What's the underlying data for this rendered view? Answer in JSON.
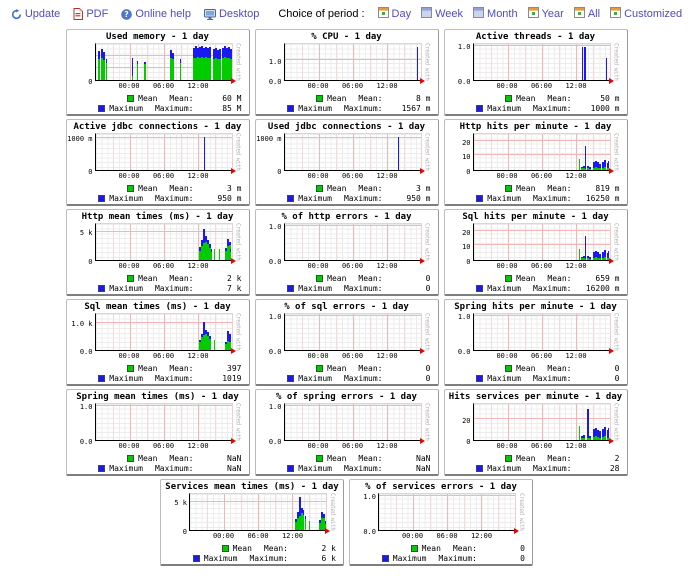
{
  "toolbar": {
    "update_label": "Update",
    "pdf_label": "PDF",
    "help_label": "Online help",
    "desktop_label": "Desktop",
    "choice_label": "Choice of period :",
    "periods": [
      {
        "label": "Day",
        "variant": "orange"
      },
      {
        "label": "Week",
        "variant": "blue"
      },
      {
        "label": "Month",
        "variant": "blue"
      },
      {
        "label": "Year",
        "variant": "orange"
      },
      {
        "label": "All",
        "variant": "orange"
      },
      {
        "label": "Customized",
        "variant": "orange"
      }
    ]
  },
  "colors": {
    "link": "#4e4cc4",
    "mean": "#00cc00",
    "max": "#1a1aee",
    "grid_major": "#f2b6b6",
    "grid_mid": "#f8d8d8",
    "arrow": "#ee0000"
  },
  "watermark": "Created with JRobin",
  "legend": {
    "mean_label": "Mean",
    "mean_name": "Mean:",
    "max_label": "Maximum",
    "max_name": "Maximum:"
  },
  "x_ticks": [
    {
      "f": 0.25,
      "t": "00:00"
    },
    {
      "f": 0.5,
      "t": "06:00"
    },
    {
      "f": 0.75,
      "t": "12:00"
    }
  ],
  "rows": [
    [
      0,
      1,
      2
    ],
    [
      3,
      4,
      5
    ],
    [
      6,
      7,
      8
    ],
    [
      9,
      10,
      11
    ],
    [
      12,
      13,
      14
    ],
    [
      15,
      16
    ]
  ],
  "chart_type": "bar",
  "charts": [
    {
      "title": "Used memory - 1 day",
      "mean": "60 M",
      "max": "85 M",
      "y_ticks": [
        [
          0.03,
          "0"
        ]
      ],
      "hlines": [
        0.33,
        0.66
      ],
      "bars": [
        [
          0.02,
          0.8,
          0.58
        ],
        [
          0.038,
          0.86,
          0.62
        ],
        [
          0.056,
          0.78,
          0.56
        ],
        [
          0.074,
          0.58,
          0.48
        ],
        [
          0.27,
          0.62,
          0.12,
          0.008
        ],
        [
          0.305,
          0.52,
          0.44,
          0.008
        ],
        [
          0.36,
          0.5,
          0.44,
          0.008
        ],
        [
          0.545,
          0.84,
          0.6
        ],
        [
          0.563,
          0.74,
          0.58
        ],
        [
          0.62,
          0.58,
          0.48,
          0.01
        ],
        [
          0.715,
          0.88,
          0.6
        ],
        [
          0.73,
          0.94,
          0.62
        ],
        [
          0.745,
          0.9,
          0.64
        ],
        [
          0.76,
          0.92,
          0.6
        ],
        [
          0.775,
          0.95,
          0.63
        ],
        [
          0.79,
          0.9,
          0.61
        ],
        [
          0.805,
          0.93,
          0.64
        ],
        [
          0.82,
          0.88,
          0.6
        ],
        [
          0.835,
          0.92,
          0.62
        ],
        [
          0.862,
          0.85,
          0.58
        ],
        [
          0.877,
          0.88,
          0.6
        ],
        [
          0.892,
          0.84,
          0.57
        ],
        [
          0.907,
          0.87,
          0.59
        ],
        [
          0.932,
          0.9,
          0.6
        ],
        [
          0.947,
          0.94,
          0.63
        ],
        [
          0.962,
          0.88,
          0.6
        ],
        [
          0.977,
          0.92,
          0.62
        ],
        [
          0.988,
          0.86,
          0.58
        ]
      ]
    },
    {
      "title": "% CPU - 1 day",
      "mean": "8 m",
      "max": "1567 m",
      "y_ticks": [
        [
          0.55,
          "1.0"
        ],
        [
          0.02,
          "0.0"
        ]
      ],
      "bars": [
        [
          0.972,
          0.93,
          0,
          0.008
        ]
      ]
    },
    {
      "title": "Active threads - 1 day",
      "mean": "50 m",
      "max": "1000 m",
      "y_ticks": [
        [
          0.95,
          "1.0"
        ],
        [
          0.02,
          "0.0"
        ]
      ],
      "bars": [
        [
          0.795,
          0.93,
          0,
          0.012
        ],
        [
          0.812,
          0.93,
          0,
          0.012
        ],
        [
          0.975,
          0.6,
          0,
          0.008
        ]
      ]
    },
    {
      "title": "Active jdbc connections - 1 day",
      "mean": "3 m",
      "max": "950 m",
      "y_ticks": [
        [
          0.9,
          "1000 m"
        ],
        [
          0.03,
          "0"
        ]
      ],
      "bars": [
        [
          0.8,
          0.92,
          0,
          0.006
        ]
      ]
    },
    {
      "title": "Used jdbc connections - 1 day",
      "mean": "3 m",
      "max": "950 m",
      "y_ticks": [
        [
          0.9,
          "1000 m"
        ],
        [
          0.03,
          "0"
        ]
      ],
      "bars": [
        [
          0.835,
          0.92,
          0,
          0.006
        ]
      ]
    },
    {
      "title": "Http hits per minute - 1 day",
      "mean": "819 m",
      "max": "16250 m",
      "y_ticks": [
        [
          0.8,
          "20"
        ],
        [
          0.42,
          "10"
        ],
        [
          0.03,
          "0"
        ]
      ],
      "bars": [
        [
          0.778,
          0,
          0.3,
          0.008
        ],
        [
          0.792,
          0.09,
          0.05
        ],
        [
          0.806,
          0.1,
          0.05
        ],
        [
          0.822,
          0.68,
          0.04,
          0.008
        ],
        [
          0.836,
          0.1,
          0.05
        ],
        [
          0.85,
          0.07,
          0.04
        ],
        [
          0.878,
          0.22,
          0.06
        ],
        [
          0.893,
          0.26,
          0.08
        ],
        [
          0.908,
          0.22,
          0.06
        ],
        [
          0.923,
          0.17,
          0.05
        ],
        [
          0.948,
          0.22,
          0.06
        ],
        [
          0.963,
          0.27,
          0.08
        ],
        [
          0.978,
          0.2,
          0.05
        ],
        [
          0.99,
          0.24,
          0.05,
          0.01
        ]
      ]
    },
    {
      "title": "Http mean times (ms) - 1 day",
      "mean": "2 k",
      "max": "7 k",
      "y_ticks": [
        [
          0.78,
          "5 k"
        ],
        [
          0.03,
          "0"
        ]
      ],
      "bars": [
        [
          0.762,
          0.35,
          0.26
        ],
        [
          0.776,
          0.55,
          0.4
        ],
        [
          0.79,
          0.85,
          0.46
        ],
        [
          0.804,
          0.66,
          0.5
        ],
        [
          0.818,
          0.56,
          0.44
        ],
        [
          0.832,
          0.44,
          0.34
        ],
        [
          0.846,
          0.3,
          0.22
        ],
        [
          0.868,
          0,
          0.3,
          0.01
        ],
        [
          0.905,
          0,
          0.3,
          0.01
        ],
        [
          0.952,
          0.34,
          0.24
        ],
        [
          0.966,
          0.58,
          0.4
        ],
        [
          0.98,
          0.5,
          0.42
        ],
        [
          0.992,
          0.3,
          0.22,
          0.008
        ]
      ]
    },
    {
      "title": "% of http errors - 1 day",
      "mean": "0",
      "max": "0",
      "y_ticks": [
        [
          0.95,
          "1.0"
        ],
        [
          0.02,
          "0.0"
        ]
      ],
      "bars": []
    },
    {
      "title": "Sql hits per minute - 1 day",
      "mean": "659 m",
      "max": "16200 m",
      "y_ticks": [
        [
          0.8,
          "20"
        ],
        [
          0.42,
          "10"
        ],
        [
          0.03,
          "0"
        ]
      ],
      "bars": [
        [
          0.778,
          0,
          0.3,
          0.008
        ],
        [
          0.792,
          0.09,
          0.05
        ],
        [
          0.806,
          0.1,
          0.05
        ],
        [
          0.822,
          0.68,
          0.04,
          0.008
        ],
        [
          0.836,
          0.1,
          0.05
        ],
        [
          0.85,
          0.07,
          0.04
        ],
        [
          0.878,
          0.22,
          0.06
        ],
        [
          0.893,
          0.26,
          0.08
        ],
        [
          0.908,
          0.22,
          0.06
        ],
        [
          0.923,
          0.17,
          0.05
        ],
        [
          0.948,
          0.22,
          0.06
        ],
        [
          0.963,
          0.27,
          0.08
        ],
        [
          0.978,
          0.2,
          0.05
        ],
        [
          0.99,
          0.24,
          0.05,
          0.01
        ]
      ]
    },
    {
      "title": "Sql mean times (ms) - 1 day",
      "mean": "397",
      "max": "1019",
      "y_ticks": [
        [
          0.76,
          "1.0 k"
        ],
        [
          0.02,
          "0.0"
        ]
      ],
      "bars": [
        [
          0.762,
          0.28,
          0.22
        ],
        [
          0.776,
          0.44,
          0.36
        ],
        [
          0.79,
          0.78,
          0.42
        ],
        [
          0.804,
          0.55,
          0.44
        ],
        [
          0.818,
          0.5,
          0.4
        ],
        [
          0.832,
          0.38,
          0.3
        ],
        [
          0.868,
          0,
          0.27,
          0.01
        ],
        [
          0.952,
          0.22,
          0.16
        ],
        [
          0.966,
          0.52,
          0.24
        ],
        [
          0.98,
          0.44,
          0.22
        ]
      ]
    },
    {
      "title": "% of sql errors - 1 day",
      "mean": "0",
      "max": "0",
      "y_ticks": [
        [
          0.95,
          "1.0"
        ],
        [
          0.02,
          "0.0"
        ]
      ],
      "bars": []
    },
    {
      "title": "Spring hits per minute - 1 day",
      "mean": "0",
      "max": "0",
      "y_ticks": [
        [
          0.95,
          "1.0"
        ],
        [
          0.02,
          "0.0"
        ]
      ],
      "bars": []
    },
    {
      "title": "Spring mean times (ms) - 1 day",
      "mean": "NaN",
      "max": "NaN",
      "y_ticks": [
        [
          0.95,
          "1.0"
        ],
        [
          0.02,
          "0.0"
        ]
      ],
      "bars": []
    },
    {
      "title": "% of spring errors - 1 day",
      "mean": "NaN",
      "max": "NaN",
      "y_ticks": [
        [
          0.95,
          "1.0"
        ],
        [
          0.02,
          "0.0"
        ]
      ],
      "bars": []
    },
    {
      "title": "Hits services per minute - 1 day",
      "mean": "2",
      "max": "28",
      "y_ticks": [
        [
          0.57,
          "20"
        ],
        [
          0.03,
          "0"
        ]
      ],
      "bars": [
        [
          0.778,
          0,
          0.4,
          0.008
        ],
        [
          0.792,
          0.12,
          0.06
        ],
        [
          0.806,
          0.13,
          0.06
        ],
        [
          0.838,
          0.875,
          0.05,
          0.008
        ],
        [
          0.852,
          0.12,
          0.05
        ],
        [
          0.878,
          0.3,
          0.08
        ],
        [
          0.893,
          0.34,
          0.1
        ],
        [
          0.908,
          0.27,
          0.08
        ],
        [
          0.923,
          0.24,
          0.06
        ],
        [
          0.948,
          0.3,
          0.08
        ],
        [
          0.963,
          0.37,
          0.1
        ],
        [
          0.978,
          0.27,
          0.06
        ],
        [
          0.99,
          0.32,
          0.06,
          0.01
        ]
      ]
    },
    {
      "title": "Services mean times (ms) - 1 day",
      "mean": "2 k",
      "max": "6 k",
      "y_ticks": [
        [
          0.78,
          "5 k"
        ],
        [
          0.03,
          "0"
        ]
      ],
      "bars": [
        [
          0.772,
          0.3,
          0.22
        ],
        [
          0.786,
          0.5,
          0.34
        ],
        [
          0.8,
          0.92,
          0.4
        ],
        [
          0.814,
          0.62,
          0.46
        ],
        [
          0.828,
          0.55,
          0.42
        ],
        [
          0.842,
          0.4,
          0.3
        ],
        [
          0.872,
          0,
          0.24,
          0.01
        ],
        [
          0.952,
          0.28,
          0.2
        ],
        [
          0.966,
          0.5,
          0.34
        ],
        [
          0.98,
          0.44,
          0.34
        ],
        [
          0.992,
          0.26,
          0.18,
          0.008
        ]
      ]
    },
    {
      "title": "% of services errors - 1 day",
      "mean": "0",
      "max": "0",
      "y_ticks": [
        [
          0.95,
          "1.0"
        ],
        [
          0.02,
          "0.0"
        ]
      ],
      "bars": []
    }
  ]
}
